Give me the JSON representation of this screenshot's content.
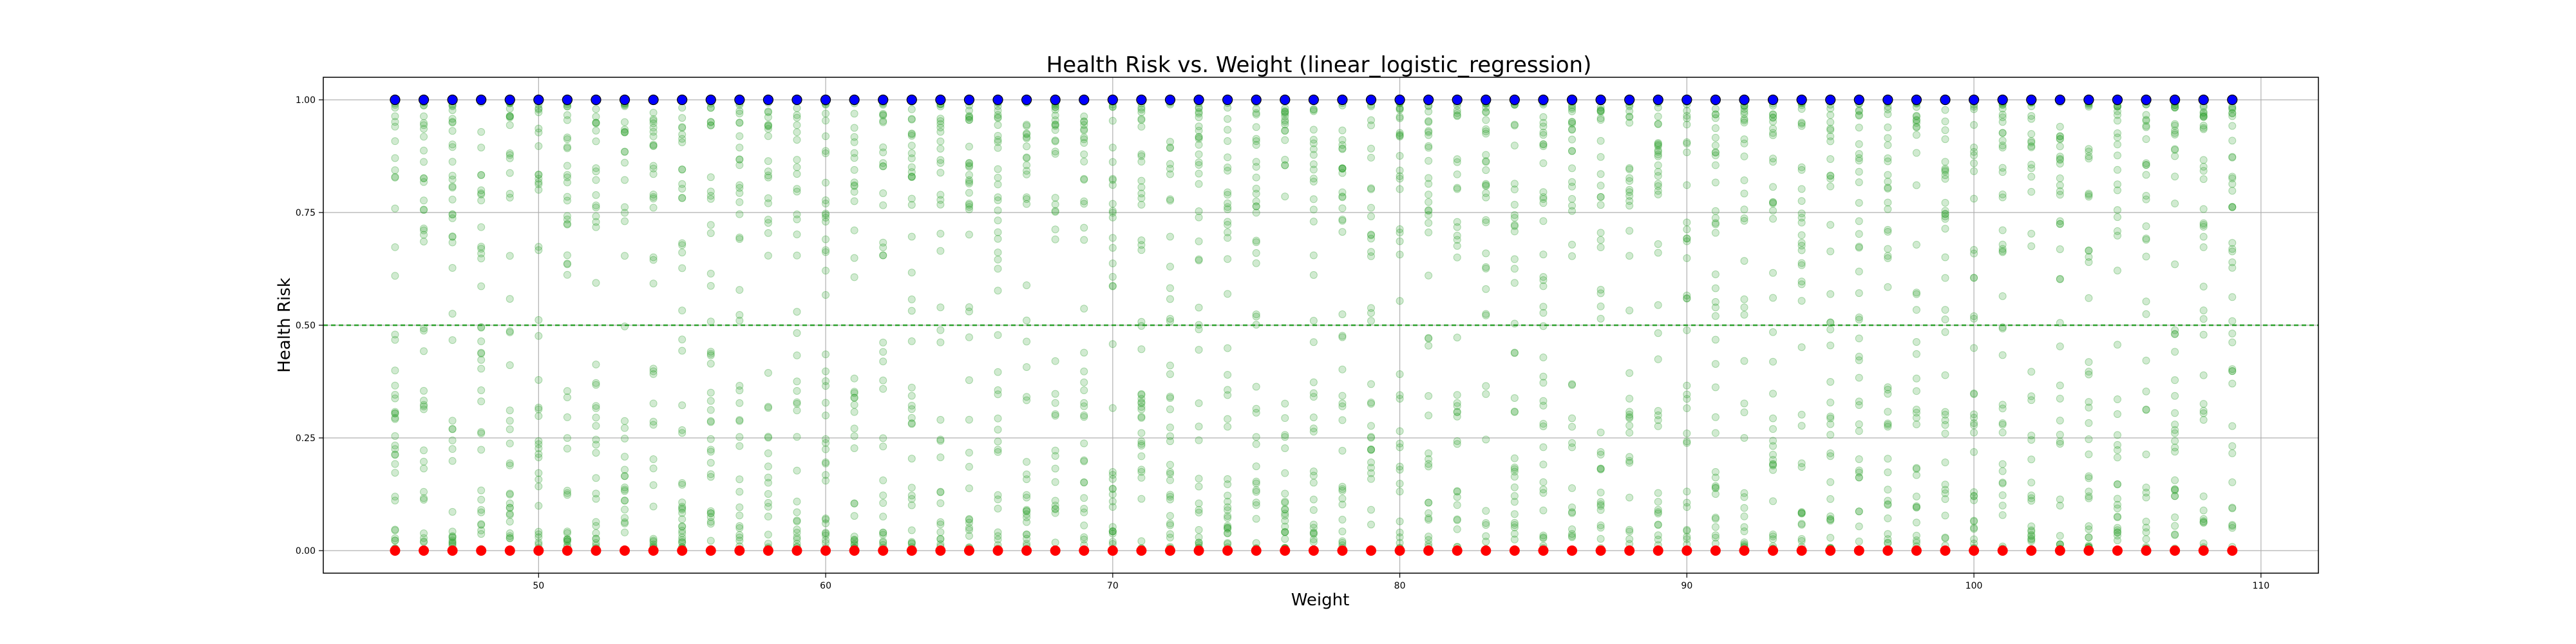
{
  "chart_data": {
    "type": "scatter",
    "title": "Health Risk vs. Weight (linear_logistic_regression)",
    "xlabel": "Weight",
    "ylabel": "Health Risk",
    "xlim": [
      42.5,
      112
    ],
    "ylim": [
      -0.05,
      1.05
    ],
    "x_ticks": [
      50,
      60,
      70,
      80,
      90,
      100,
      110
    ],
    "x_tick_labels": [
      "50",
      "60",
      "70",
      "80",
      "90",
      "100",
      "110"
    ],
    "y_ticks": [
      0.0,
      0.25,
      0.5,
      0.75,
      1.0
    ],
    "y_tick_labels": [
      "0.00",
      "0.25",
      "0.50",
      "0.75",
      "1.00"
    ],
    "grid": true,
    "threshold_line": {
      "y": 0.5,
      "style": "dashed",
      "color": "#2ca02c"
    },
    "colors": {
      "predicted_probability": "#2ca02c",
      "actual_high_risk": "#0000ff",
      "actual_low_risk": "#ff0000",
      "axis": "#000000",
      "grid": "#b0b0b0"
    },
    "weights": [
      45,
      46,
      47,
      48,
      49,
      50,
      51,
      52,
      53,
      54,
      55,
      56,
      57,
      58,
      59,
      60,
      61,
      62,
      63,
      64,
      65,
      66,
      67,
      68,
      69,
      70,
      71,
      72,
      73,
      74,
      75,
      76,
      77,
      78,
      79,
      80,
      81,
      82,
      83,
      84,
      85,
      86,
      87,
      88,
      89,
      90,
      91,
      92,
      93,
      94,
      95,
      96,
      97,
      98,
      99,
      100,
      101,
      102,
      103,
      104,
      105,
      106,
      107,
      108,
      109
    ],
    "series": [
      {
        "values_description_omitted": true,
        "x_from": "weights",
        "y": 1.0,
        "color": "#0000ff"
      },
      {
        "x_from": "weights",
        "y": 0.0,
        "color": "#ff0000"
      },
      {
        "x_range": [
          45,
          109
        ],
        "y_range": [
          0,
          1
        ],
        "color": "#2ca02c",
        "alpha": 0.25,
        "points_per_weight": 45
      }
    ]
  }
}
